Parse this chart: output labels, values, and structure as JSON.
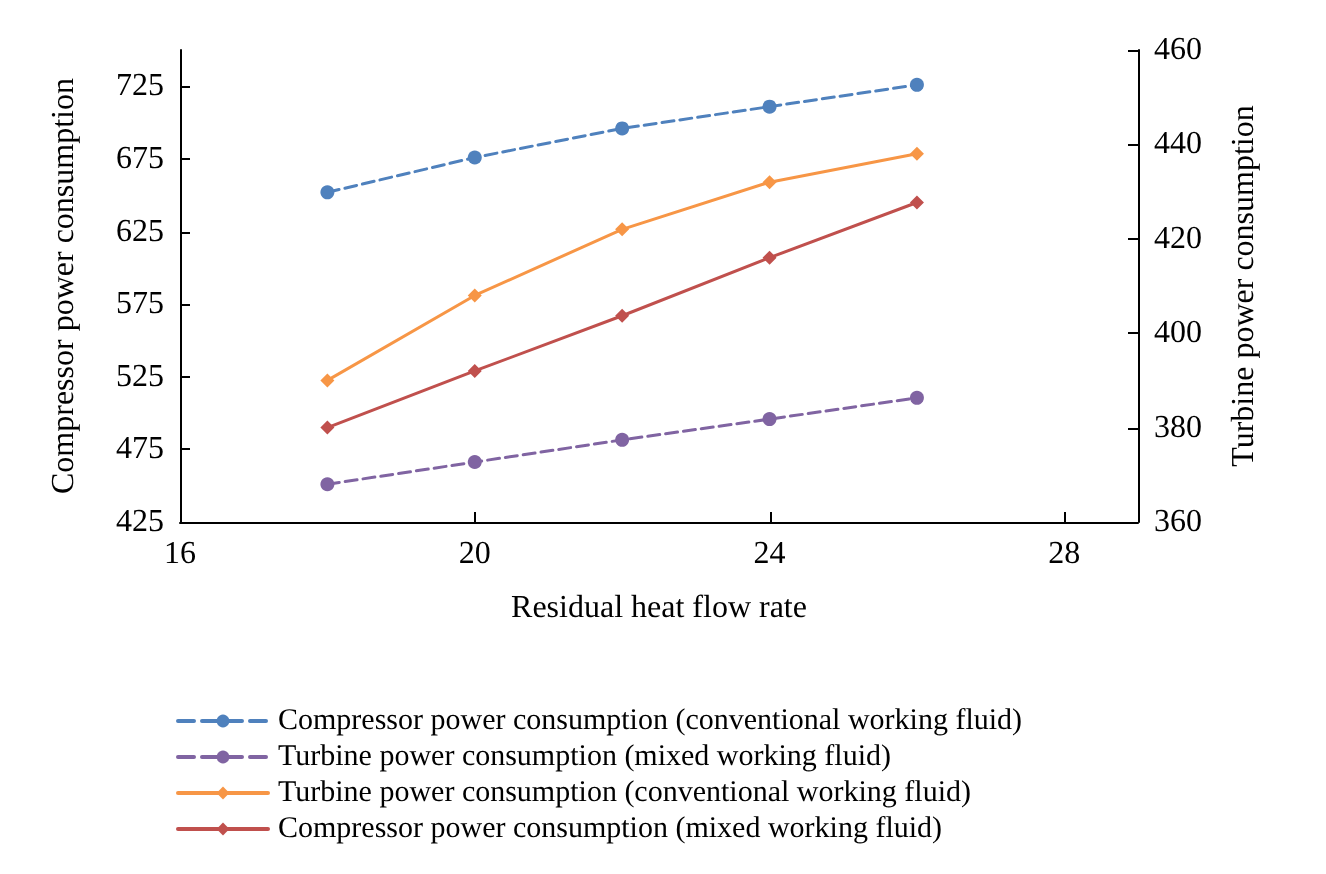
{
  "chart_data": {
    "type": "line",
    "xlabel": "Residual heat flow rate",
    "ylabel": "Compressor power consumption",
    "y2label": "Turbine power consumption",
    "x": [
      18,
      20,
      22,
      24,
      26
    ],
    "xlim": [
      16,
      29
    ],
    "xticks": [
      16,
      20,
      24,
      28
    ],
    "ylim": [
      425,
      750
    ],
    "yticks": [
      425,
      475,
      525,
      575,
      625,
      675,
      725
    ],
    "y2lim": [
      360,
      460
    ],
    "y2ticks": [
      360,
      380,
      400,
      420,
      440,
      460
    ],
    "grid": false,
    "legend": "bottom",
    "series": [
      {
        "name": "Compressor power consumption (conventional working fluid)",
        "color": "#4f81bd",
        "marker": "circle",
        "line_style": "dashed",
        "values": [
          652,
          676,
          696,
          711,
          726
        ]
      },
      {
        "name": "Turbine power consumption (mixed working fluid)",
        "color": "#8064a2",
        "marker": "circle",
        "line_style": "dashed",
        "axis": "y2",
        "values": [
          368,
          372.7,
          377.4,
          381.8,
          386.3
        ]
      },
      {
        "name": "Turbine power consumption (conventional working fluid)",
        "color": "#f79646",
        "marker": "diamond",
        "line_style": "solid",
        "axis": "y2",
        "values": [
          390,
          408,
          422,
          432,
          438
        ]
      },
      {
        "name": "Compressor power consumption (mixed working fluid)",
        "color": "#c0504d",
        "marker": "diamond",
        "line_style": "solid",
        "values": [
          490,
          529,
          567,
          607,
          645
        ]
      }
    ]
  }
}
